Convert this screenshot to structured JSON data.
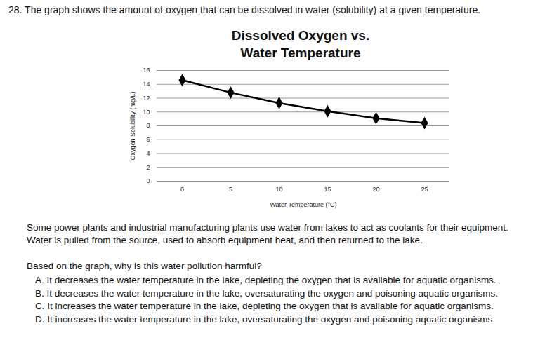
{
  "header": "28. The graph shows the amount of oxygen that can be dissolved in water (solubility) at a given temperature.",
  "chart_data": {
    "type": "line",
    "title": "Dissolved Oxygen vs.\nWater Temperature",
    "x_label": "Water Temperature (°C)",
    "y_label": "Oxygen Solubility (mg/L)",
    "categories": [
      "0",
      "5",
      "10",
      "15",
      "20",
      "25"
    ],
    "values": [
      14.6,
      12.8,
      11.3,
      10.1,
      9.1,
      8.4
    ],
    "color": "#000000",
    "marker": "diamond",
    "ylim": [
      0,
      16
    ],
    "yticks": [
      0,
      2,
      4,
      6,
      8,
      10,
      12,
      14,
      16
    ],
    "grid": true
  },
  "passage": "Some power plants and industrial manufacturing plants use water from lakes to act as coolants for their equipment. Water is pulled from the source, used to absorb equipment heat, and then returned to the lake.",
  "question": "Based on the graph, why is this water pollution harmful?",
  "choices": [
    "A. It decreases the water temperature in the lake, depleting the oxygen that is available for aquatic organisms.",
    "B. It decreases the water temperature in the lake, oversaturating the oxygen and poisoning aquatic organisms.",
    "C. It increases the water temperature in the lake, depleting the oxygen that is available for aquatic organisms.",
    "D. It increases the water temperature in the lake, oversaturating the oxygen and poisoning aquatic organisms."
  ]
}
